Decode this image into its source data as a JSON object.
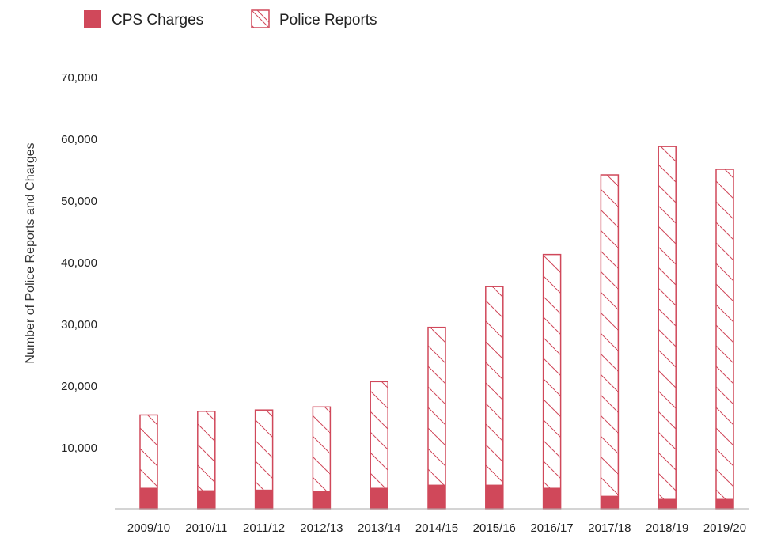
{
  "chart_data": {
    "type": "bar",
    "title": "",
    "xlabel": "",
    "ylabel": "Number of Police Reports and Charges",
    "categories": [
      "2009/10",
      "2010/11",
      "2011/12",
      "2012/13",
      "2013/14",
      "2014/15",
      "2015/16",
      "2016/17",
      "2017/18",
      "2018/19",
      "2019/20"
    ],
    "series": [
      {
        "name": "CPS Charges",
        "style": "solid",
        "values": [
          3400,
          3000,
          3100,
          2900,
          3400,
          3900,
          3900,
          3400,
          2100,
          1600,
          1600
        ]
      },
      {
        "name": "Police Reports",
        "style": "hatched",
        "values": [
          15200,
          15800,
          16000,
          16500,
          20600,
          29400,
          36000,
          41200,
          54100,
          58700,
          55000
        ]
      }
    ],
    "yticks": [
      "10,000",
      "20,000",
      "30,000",
      "40,000",
      "50,000",
      "60,000",
      "70,000"
    ],
    "ylim": [
      0,
      70000
    ],
    "legend_position": "top-left",
    "grid": false,
    "colors": {
      "accent": "#d0485a",
      "axis": "#aaaaaa",
      "text": "#222222"
    }
  }
}
